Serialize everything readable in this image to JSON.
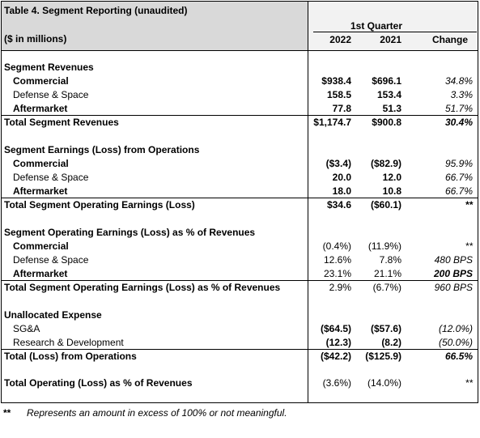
{
  "header": {
    "table_title": "Table 4.  Segment Reporting (unaudited)",
    "units": "($ in millions)",
    "period": "1st Quarter",
    "col_2022": "2022",
    "col_2021": "2021",
    "col_change": "Change"
  },
  "sections": {
    "revenues": {
      "title": "Segment Revenues",
      "rows": [
        {
          "label": "Commercial",
          "v2022": "$938.4",
          "v2021": "$696.1",
          "change": "34.8%"
        },
        {
          "label": "Defense & Space",
          "v2022": "158.5",
          "v2021": "153.4",
          "change": "3.3%"
        },
        {
          "label": "Aftermarket",
          "v2022": "77.8",
          "v2021": "51.3",
          "change": "51.7%"
        }
      ],
      "total": {
        "label": "Total Segment Revenues",
        "v2022": "$1,174.7",
        "v2021": "$900.8",
        "change": "30.4%"
      }
    },
    "earnings": {
      "title": "Segment Earnings (Loss) from Operations",
      "rows": [
        {
          "label": "Commercial",
          "v2022": "($3.4)",
          "v2021": "($82.9)",
          "change": "95.9%"
        },
        {
          "label": "Defense & Space",
          "v2022": "20.0",
          "v2021": "12.0",
          "change": "66.7%"
        },
        {
          "label": "Aftermarket",
          "v2022": "18.0",
          "v2021": "10.8",
          "change": "66.7%"
        }
      ],
      "total": {
        "label": "Total Segment Operating Earnings (Loss)",
        "v2022": "$34.6",
        "v2021": "($60.1)",
        "change": "**"
      }
    },
    "margin": {
      "title": "Segment Operating Earnings (Loss) as % of Revenues",
      "rows": [
        {
          "label": "Commercial",
          "v2022": "(0.4%)",
          "v2021": "(11.9%)",
          "change": "**"
        },
        {
          "label": "Defense & Space",
          "v2022": "12.6%",
          "v2021": "7.8%",
          "change": "480  BPS"
        },
        {
          "label": "Aftermarket",
          "v2022": "23.1%",
          "v2021": "21.1%",
          "change": "200  BPS"
        }
      ],
      "total": {
        "label": "Total Segment Operating Earnings (Loss) as % of Revenues",
        "v2022": "2.9%",
        "v2021": "(6.7%)",
        "change": "960  BPS"
      }
    },
    "unallocated": {
      "title": "Unallocated Expense",
      "rows": [
        {
          "label": "SG&A",
          "v2022": "($64.5)",
          "v2021": "($57.6)",
          "change": "(12.0%)"
        },
        {
          "label": "Research & Development",
          "v2022": "(12.3)",
          "v2021": "(8.2)",
          "change": "(50.0%)"
        }
      ],
      "total": {
        "label": "Total (Loss) from Operations",
        "v2022": "($42.2)",
        "v2021": "($125.9)",
        "change": "66.5%"
      }
    },
    "operating_pct": {
      "label": "Total Operating (Loss) as % of Revenues",
      "v2022": "(3.6%)",
      "v2021": "(14.0%)",
      "change": "**"
    }
  },
  "footnote": {
    "marker": "**",
    "text": "Represents an amount in excess of 100% or not meaningful."
  }
}
